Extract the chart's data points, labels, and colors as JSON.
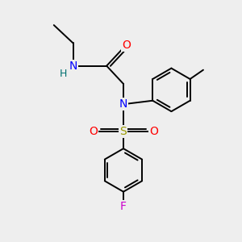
{
  "bg_color": "#eeeeee",
  "atom_colors": {
    "N": "#0000ff",
    "O": "#ff0000",
    "S": "#999900",
    "F": "#cc00cc",
    "H": "#007070",
    "C": "#000000"
  },
  "bond_color": "#000000",
  "bond_width": 1.4
}
